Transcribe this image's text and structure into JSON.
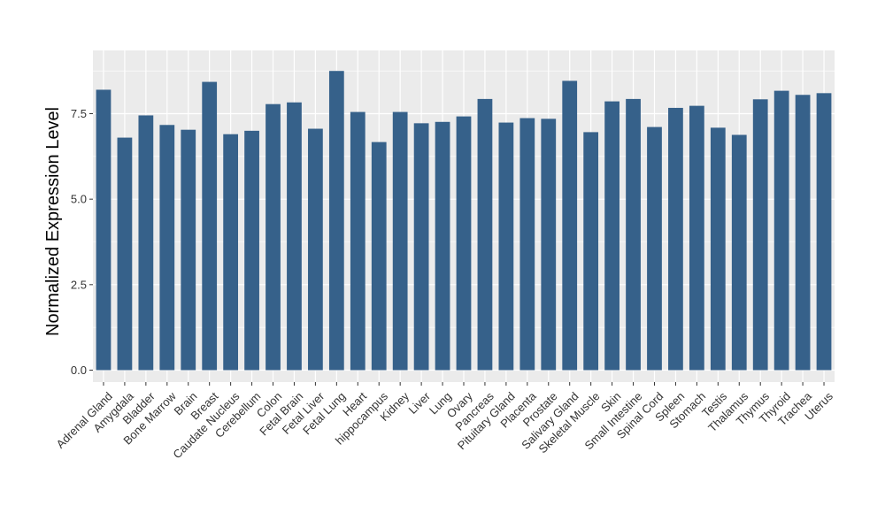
{
  "chart_data": {
    "type": "bar",
    "title": "",
    "xlabel": "",
    "ylabel": "Normalized Expression Level",
    "ylim": [
      -0.35,
      9.35
    ],
    "yticks": [
      0.0,
      2.5,
      5.0,
      7.5
    ],
    "ytick_labels": [
      "0.0",
      "2.5",
      "5.0",
      "7.5"
    ],
    "grid": true,
    "colors": {
      "bar": "#36618a",
      "panel": "#ebebeb",
      "grid": "#ffffff"
    },
    "categories": [
      "Adrenal Gland",
      "Amygdala",
      "Bladder",
      "Bone Marrow",
      "Brain",
      "Breast",
      "Caudate Nucleus",
      "Cerebellum",
      "Colon",
      "Fetal Brain",
      "Fetal Liver",
      "Fetal Lung",
      "Heart",
      "hippocampus",
      "Kidney",
      "Liver",
      "Lung",
      "Ovary",
      "Pancreas",
      "Pituitary Gland",
      "Placenta",
      "Prostate",
      "Salivary Gland",
      "Skeletal Muscle",
      "Skin",
      "Small Intestine",
      "Spinal Cord",
      "Spleen",
      "Stomach",
      "Testis",
      "Thalamus",
      "Thymus",
      "Thyroid",
      "Trachea",
      "Uterus"
    ],
    "values": [
      8.2,
      6.8,
      7.45,
      7.17,
      7.03,
      8.43,
      6.9,
      7.0,
      7.78,
      7.83,
      7.06,
      8.75,
      7.55,
      6.67,
      7.55,
      7.22,
      7.26,
      7.42,
      7.93,
      7.24,
      7.37,
      7.35,
      8.46,
      6.96,
      7.86,
      7.93,
      7.11,
      7.67,
      7.73,
      7.09,
      6.88,
      7.92,
      8.17,
      8.05,
      8.1
    ]
  }
}
